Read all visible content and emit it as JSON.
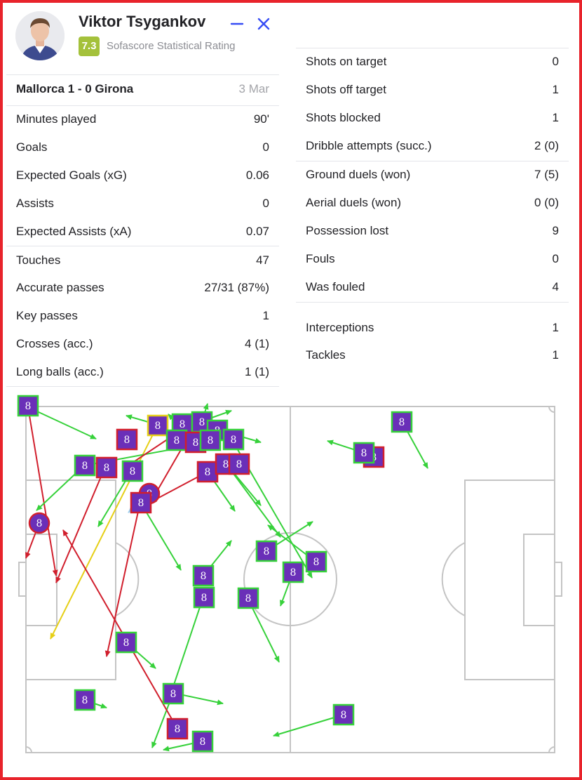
{
  "player": {
    "name": "Viktor Tsygankov",
    "rating": "7.3",
    "rating_label": "Sofascore Statistical Rating"
  },
  "match": {
    "teams": "Mallorca 1 - 0 Girona",
    "date": "3 Mar"
  },
  "left_stats": [
    {
      "label": "Minutes played",
      "value": "90'"
    },
    {
      "label": "Goals",
      "value": "0"
    },
    {
      "label": "Expected Goals (xG)",
      "value": "0.06"
    },
    {
      "label": "Assists",
      "value": "0"
    },
    {
      "label": "Expected Assists (xA)",
      "value": "0.07"
    },
    {
      "label": "Touches",
      "value": "47"
    },
    {
      "label": "Accurate passes",
      "value": "27/31 (87%)"
    },
    {
      "label": "Key passes",
      "value": "1"
    },
    {
      "label": "Crosses (acc.)",
      "value": "4 (1)"
    },
    {
      "label": "Long balls (acc.)",
      "value": "1 (1)"
    }
  ],
  "right_stats": [
    {
      "label": "Shots on target",
      "value": "0"
    },
    {
      "label": "Shots off target",
      "value": "1"
    },
    {
      "label": "Shots blocked",
      "value": "1"
    },
    {
      "label": "Dribble attempts (succ.)",
      "value": "2 (0)"
    },
    {
      "label": "Ground duels (won)",
      "value": "7 (5)"
    },
    {
      "label": "Aerial duels (won)",
      "value": "0 (0)"
    },
    {
      "label": "Possession lost",
      "value": "9"
    },
    {
      "label": "Fouls",
      "value": "0"
    },
    {
      "label": "Was fouled",
      "value": "4"
    },
    {
      "label": "Interceptions",
      "value": "1"
    },
    {
      "label": "Tackles",
      "value": "1"
    }
  ],
  "pitch": {
    "marker_number": "8",
    "colors": {
      "frame": "#e8232b",
      "accent": "#374df5",
      "rating": "#a4c13b",
      "success": "#36d13a",
      "fail": "#d11f2d",
      "key_pass": "#e6cf16",
      "assist_like": "#9bd1f0",
      "marker_fill": "#6a2fb8",
      "marker_border_success": "#36d13a",
      "marker_border_fail": "#d11f2d",
      "pitch_lines": "#c4c4c4"
    }
  }
}
